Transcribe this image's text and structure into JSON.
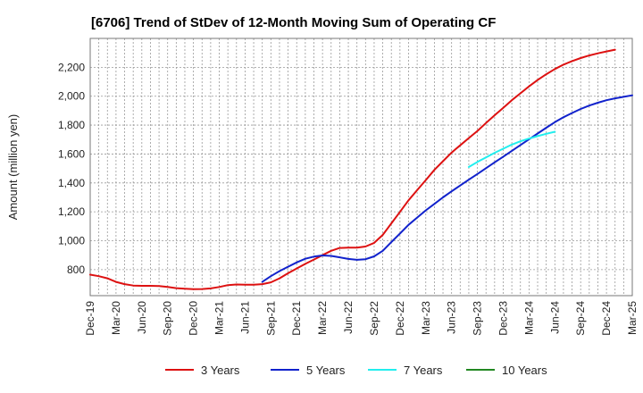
{
  "chart_data": {
    "type": "line",
    "title": "[6706]  Trend of StDev of 12-Month Moving Sum of Operating CF",
    "ylabel": "Amount (million yen)",
    "xlabel": "",
    "ylim": [
      620,
      2400
    ],
    "yticks": [
      800,
      1000,
      1200,
      1400,
      1600,
      1800,
      2000,
      2200
    ],
    "ytick_labels": [
      "800",
      "1,000",
      "1,200",
      "1,400",
      "1,600",
      "1,800",
      "2,000",
      "2,200"
    ],
    "x_months": [
      "2019-12",
      "2025-03"
    ],
    "xtick_labels": [
      "Dec-19",
      "Mar-20",
      "Jun-20",
      "Sep-20",
      "Dec-20",
      "Mar-21",
      "Jun-21",
      "Sep-21",
      "Dec-21",
      "Mar-22",
      "Jun-22",
      "Sep-22",
      "Dec-22",
      "Mar-23",
      "Jun-23",
      "Sep-23",
      "Dec-23",
      "Mar-24",
      "Jun-24",
      "Sep-24",
      "Dec-24",
      "Mar-25"
    ],
    "grid": true,
    "legend_position": "bottom",
    "series": [
      {
        "name": "3 Years",
        "color": "#dd1111",
        "start": "2019-12",
        "values": [
          765,
          755,
          740,
          715,
          700,
          690,
          688,
          688,
          687,
          680,
          672,
          668,
          665,
          666,
          670,
          680,
          693,
          697,
          696,
          696,
          700,
          712,
          740,
          775,
          808,
          840,
          870,
          900,
          930,
          950,
          952,
          952,
          960,
          985,
          1040,
          1120,
          1200,
          1280,
          1350,
          1420,
          1490,
          1550,
          1610,
          1660,
          1710,
          1760,
          1815,
          1868,
          1920,
          1972,
          2020,
          2068,
          2112,
          2152,
          2188,
          2218,
          2243,
          2264,
          2282,
          2297,
          2310,
          2322
        ]
      },
      {
        "name": "5 Years",
        "color": "#1122cc",
        "start": "2021-08",
        "values": [
          715,
          755,
          790,
          820,
          850,
          875,
          890,
          898,
          895,
          885,
          874,
          868,
          872,
          892,
          930,
          990,
          1050,
          1110,
          1160,
          1210,
          1255,
          1300,
          1342,
          1382,
          1422,
          1462,
          1502,
          1542,
          1582,
          1622,
          1662,
          1702,
          1742,
          1782,
          1820,
          1854,
          1884,
          1912,
          1935,
          1955,
          1972,
          1985,
          1996,
          2006
        ]
      },
      {
        "name": "7 Years",
        "color": "#22eeee",
        "start": "2023-08",
        "values": [
          1510,
          1545,
          1577,
          1608,
          1637,
          1665,
          1688,
          1707,
          1724,
          1740,
          1754
        ]
      },
      {
        "name": "10 Years",
        "color": "#228822",
        "start": "2024-03",
        "values": []
      }
    ]
  }
}
